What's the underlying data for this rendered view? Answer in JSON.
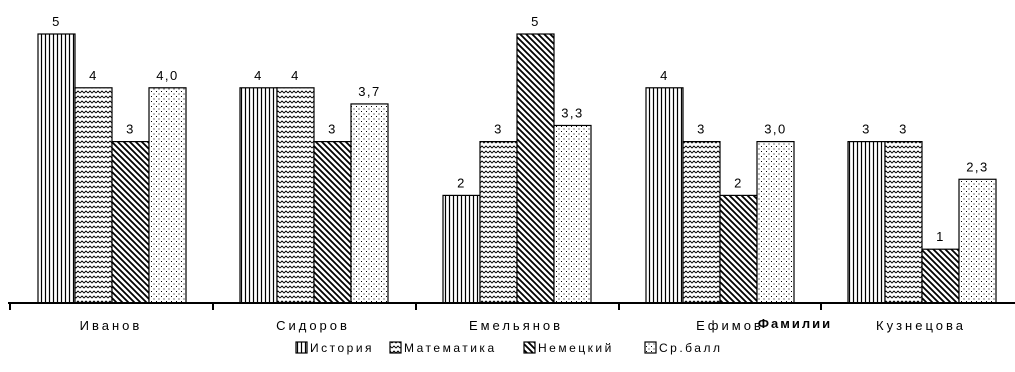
{
  "chart_data": {
    "type": "bar",
    "title": "",
    "xlabel": "Фамилии",
    "ylabel": "",
    "ylim": [
      0,
      5
    ],
    "grid": false,
    "legend_position": "bottom",
    "categories": [
      "Иванов",
      "Сидоров",
      "Емельянов",
      "Ефимов",
      "Кузнецова"
    ],
    "series": [
      {
        "name": "История",
        "values": [
          5,
          4,
          2,
          4,
          3
        ],
        "labels": [
          "5",
          "4",
          "2",
          "4",
          "3"
        ],
        "pattern": "vertical-lines"
      },
      {
        "name": "Математика",
        "values": [
          4,
          4,
          3,
          3,
          3
        ],
        "labels": [
          "4",
          "4",
          "3",
          "3",
          "3"
        ],
        "pattern": "horizontal-wave"
      },
      {
        "name": "Немецкий",
        "values": [
          3,
          3,
          5,
          2,
          1
        ],
        "labels": [
          "3",
          "3",
          "5",
          "2",
          "1"
        ],
        "pattern": "diagonal-lines"
      },
      {
        "name": "Ср.балл",
        "values": [
          4.0,
          3.7,
          3.3,
          3.0,
          2.3
        ],
        "labels": [
          "4,0",
          "3,7",
          "3,3",
          "3,0",
          "2,3"
        ],
        "pattern": "dots"
      }
    ]
  }
}
